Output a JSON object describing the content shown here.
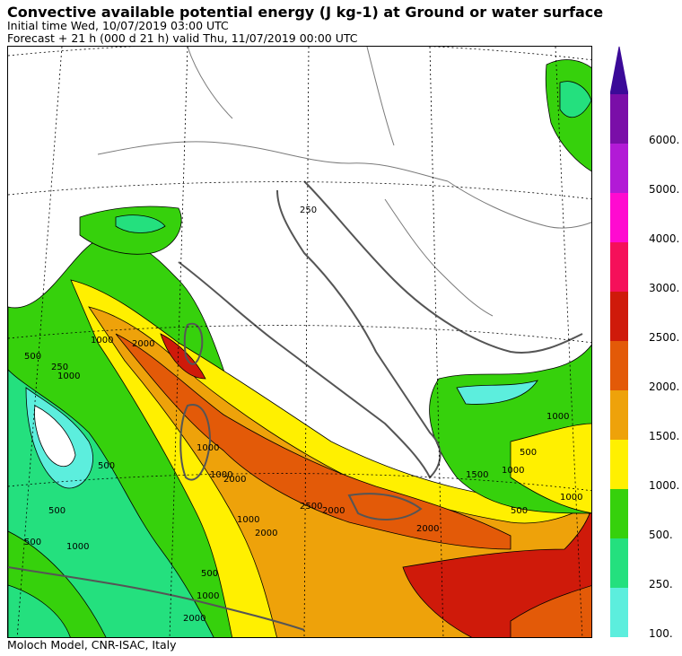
{
  "header": {
    "title": "Convective available potential energy (J kg-1) at Ground or water surface",
    "initial": "Initial time  Wed, 10/07/2019  03:00 UTC",
    "forecast": "Forecast  +  21 h  (000 d 21 h)  valid Thu, 11/07/2019 00:00 UTC"
  },
  "footer": "Moloch Model, CNR-ISAC, Italy",
  "legend": {
    "levels": [
      {
        "label": "6000.",
        "color": "#7a0ea8"
      },
      {
        "label": "5000.",
        "color": "#b21ad6"
      },
      {
        "label": "4000.",
        "color": "#ff0ad0"
      },
      {
        "label": "3000.",
        "color": "#f5105a"
      },
      {
        "label": "2500.",
        "color": "#cf1a0a"
      },
      {
        "label": "2000.",
        "color": "#e35a08"
      },
      {
        "label": "1500.",
        "color": "#eea20a"
      },
      {
        "label": "1000.",
        "color": "#fff000"
      },
      {
        "label": "500.",
        "color": "#36d10c"
      },
      {
        "label": "250.",
        "color": "#24e07e"
      },
      {
        "label": "100.",
        "color": "#5ceedd"
      }
    ],
    "top_color": "#3b0a98"
  },
  "map": {
    "contour_labels": [
      "250",
      "1000",
      "2000",
      "1000",
      "500",
      "250",
      "500",
      "500",
      "500",
      "1000",
      "1000",
      "1000",
      "2000",
      "1000",
      "2000",
      "2500",
      "2000",
      "2000",
      "1000",
      "1500",
      "1000",
      "500",
      "500",
      "1000",
      "2000",
      "1000",
      "500"
    ]
  }
}
